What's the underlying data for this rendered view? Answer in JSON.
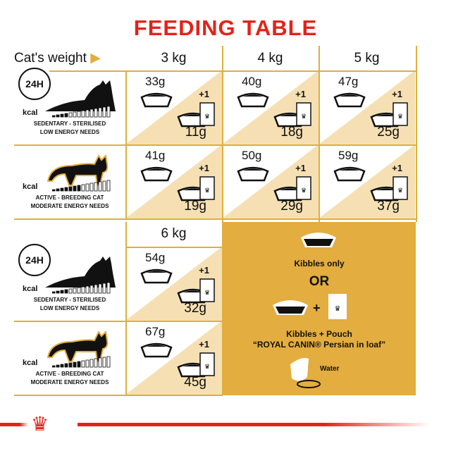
{
  "title": "FEEDING TABLE",
  "header": {
    "weight_label": "Cat's weight",
    "cols": [
      "3 kg",
      "4 kg",
      "5 kg"
    ],
    "col_extra": "6 kg"
  },
  "profiles": [
    {
      "clock": "24H",
      "kcal": "kcal",
      "label1": "SEDENTARY - STERILISED",
      "label2": "LOW ENERGY NEEDS"
    },
    {
      "kcal": "kcal",
      "label1": "ACTIVE - BREEDING CAT",
      "label2": "MODERATE ENERGY NEEDS"
    },
    {
      "clock": "24H",
      "kcal": "kcal",
      "label1": "SEDENTARY - STERILISED",
      "label2": "LOW ENERGY NEEDS"
    },
    {
      "kcal": "kcal",
      "label1": "ACTIVE - BREEDING CAT",
      "label2": "MODERATE ENERGY NEEDS"
    }
  ],
  "cells": [
    {
      "kibbles": "33g",
      "plus": "+1",
      "mixed": "11g"
    },
    {
      "kibbles": "40g",
      "plus": "+1",
      "mixed": "18g"
    },
    {
      "kibbles": "47g",
      "plus": "+1",
      "mixed": "25g"
    },
    {
      "kibbles": "41g",
      "plus": "+1",
      "mixed": "19g"
    },
    {
      "kibbles": "50g",
      "plus": "+1",
      "mixed": "29g"
    },
    {
      "kibbles": "59g",
      "plus": "+1",
      "mixed": "37g"
    },
    {
      "kibbles": "54g",
      "plus": "+1",
      "mixed": "32g"
    },
    {
      "kibbles": "67g",
      "plus": "+1",
      "mixed": "45g"
    }
  ],
  "legend": {
    "kibbles_only": "Kibbles only",
    "or": "OR",
    "plus": "+",
    "kibbles_pouch": "Kibbles + Pouch",
    "product": "“ROYAL CANIN® Persian in loaf”",
    "water": "Water"
  },
  "colors": {
    "red": "#e2231a",
    "gold": "#e3ad3f",
    "beige": "#f6e0b3"
  }
}
